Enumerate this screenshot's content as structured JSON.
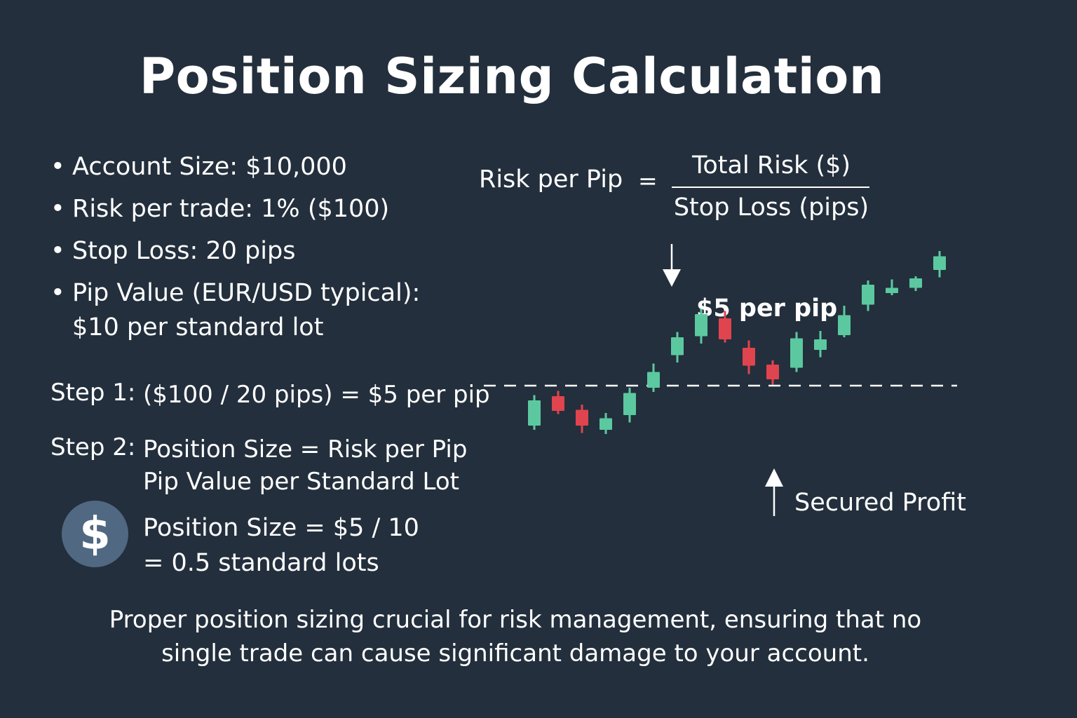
{
  "title": "Position Sizing Calculation",
  "bullets": [
    "Account Size: $10,000",
    "Risk per trade: 1% ($100)",
    "Stop Loss: 20 pips",
    "Pip Value (EUR/USD typical):"
  ],
  "bullet_continuation": "$10 per standard lot",
  "step1": {
    "label": "Step 1:",
    "text": "($100 / 20 pips) = $5 per pip"
  },
  "step2": {
    "label": "Step 2:",
    "line1": "Position Size = Risk per Pip",
    "line2": "Pip Value per Standard Lot"
  },
  "coin_symbol": "$",
  "position_result": {
    "line1": "Position Size = $5 / 10",
    "line2": "= 0.5 standard lots"
  },
  "formula": {
    "label": "Risk per Pip",
    "equals": "=",
    "numerator": "Total Risk ($)",
    "denominator": "Stop Loss (pips)"
  },
  "per_pip_label": "$5 per pip",
  "secured_label": "Secured Profit",
  "footer": {
    "line1": "Proper position sizing crucial for risk management, ensuring that no",
    "line2": "single trade can cause significant damage to your account."
  },
  "colors": {
    "background": "#232f3c",
    "bull": "#5cc8a0",
    "bear": "#e0444e",
    "coin": "#506882",
    "text": "#ffffff"
  },
  "chart_data": {
    "type": "candlestick",
    "reference_level": 100,
    "candles": [
      {
        "open": 62,
        "close": 86,
        "high": 91,
        "low": 58,
        "dir": "up"
      },
      {
        "open": 90,
        "close": 76,
        "high": 95,
        "low": 73,
        "dir": "down"
      },
      {
        "open": 77,
        "close": 62,
        "high": 82,
        "low": 55,
        "dir": "down"
      },
      {
        "open": 58,
        "close": 69,
        "high": 74,
        "low": 54,
        "dir": "up"
      },
      {
        "open": 72,
        "close": 93,
        "high": 98,
        "low": 65,
        "dir": "up"
      },
      {
        "open": 98,
        "close": 113,
        "high": 121,
        "low": 94,
        "dir": "up"
      },
      {
        "open": 129,
        "close": 146,
        "high": 151,
        "low": 122,
        "dir": "up"
      },
      {
        "open": 147,
        "close": 168,
        "high": 173,
        "low": 140,
        "dir": "up"
      },
      {
        "open": 164,
        "close": 144,
        "high": 171,
        "low": 141,
        "dir": "down"
      },
      {
        "open": 136,
        "close": 119,
        "high": 143,
        "low": 111,
        "dir": "down"
      },
      {
        "open": 120,
        "close": 106,
        "high": 124,
        "low": 101,
        "dir": "down"
      },
      {
        "open": 117,
        "close": 145,
        "high": 151,
        "low": 113,
        "dir": "up"
      },
      {
        "open": 134,
        "close": 144,
        "high": 152,
        "low": 127,
        "dir": "up"
      },
      {
        "open": 148,
        "close": 167,
        "high": 176,
        "low": 146,
        "dir": "up"
      },
      {
        "open": 177,
        "close": 196,
        "high": 200,
        "low": 171,
        "dir": "up"
      },
      {
        "open": 188,
        "close": 193,
        "high": 201,
        "low": 186,
        "dir": "up"
      },
      {
        "open": 193,
        "close": 202,
        "high": 204,
        "low": 190,
        "dir": "up"
      },
      {
        "open": 210,
        "close": 223,
        "high": 228,
        "low": 203,
        "dir": "up"
      }
    ]
  }
}
